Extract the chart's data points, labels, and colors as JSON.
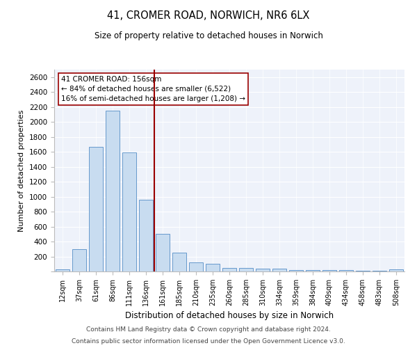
{
  "title": "41, CROMER ROAD, NORWICH, NR6 6LX",
  "subtitle": "Size of property relative to detached houses in Norwich",
  "xlabel": "Distribution of detached houses by size in Norwich",
  "ylabel": "Number of detached properties",
  "bins": [
    "12sqm",
    "37sqm",
    "61sqm",
    "86sqm",
    "111sqm",
    "136sqm",
    "161sqm",
    "185sqm",
    "210sqm",
    "235sqm",
    "260sqm",
    "285sqm",
    "310sqm",
    "334sqm",
    "359sqm",
    "384sqm",
    "409sqm",
    "434sqm",
    "458sqm",
    "483sqm",
    "508sqm"
  ],
  "values": [
    25,
    300,
    1670,
    2150,
    1590,
    960,
    500,
    250,
    120,
    100,
    50,
    50,
    35,
    35,
    20,
    20,
    20,
    20,
    5,
    5,
    25
  ],
  "bar_color": "#c8dcf0",
  "bar_edge_color": "#6699cc",
  "vline_x_index": 6,
  "vline_color": "#990000",
  "annotation_text": "41 CROMER ROAD: 156sqm\n← 84% of detached houses are smaller (6,522)\n16% of semi-detached houses are larger (1,208) →",
  "annotation_box_color": "white",
  "annotation_box_edge": "#990000",
  "ylim": [
    0,
    2700
  ],
  "yticks": [
    0,
    200,
    400,
    600,
    800,
    1000,
    1200,
    1400,
    1600,
    1800,
    2000,
    2200,
    2400,
    2600
  ],
  "bg_color": "#eef2fa",
  "footer1": "Contains HM Land Registry data © Crown copyright and database right 2024.",
  "footer2": "Contains public sector information licensed under the Open Government Licence v3.0."
}
